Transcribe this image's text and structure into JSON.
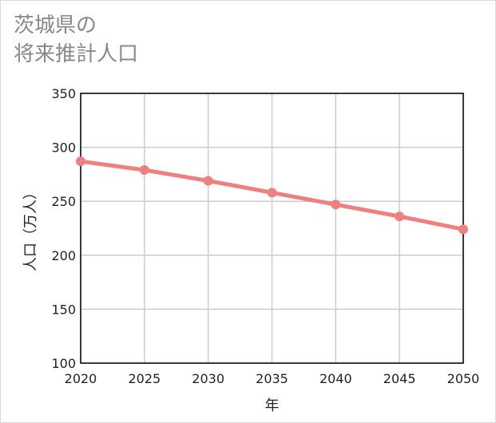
{
  "title": {
    "line1": "茨城県の",
    "line2": "将来推計人口"
  },
  "chart_data": {
    "type": "line",
    "title": "茨城県の将来推計人口",
    "xlabel": "年",
    "ylabel": "人口（万人）",
    "x": [
      2020,
      2025,
      2030,
      2035,
      2040,
      2045,
      2050
    ],
    "series": [
      {
        "name": "人口",
        "values": [
          287,
          279,
          269,
          258,
          247,
          236,
          224
        ],
        "color": "#f08080"
      }
    ],
    "xlim": [
      2020,
      2050
    ],
    "ylim": [
      100,
      350
    ],
    "yticks": [
      100,
      150,
      200,
      250,
      300,
      350
    ],
    "xticks": [
      2020,
      2025,
      2030,
      2035,
      2040,
      2045,
      2050
    ],
    "grid": true,
    "colors": {
      "line": "#f08080",
      "grid": "#cccccc",
      "axis": "#000000"
    }
  }
}
